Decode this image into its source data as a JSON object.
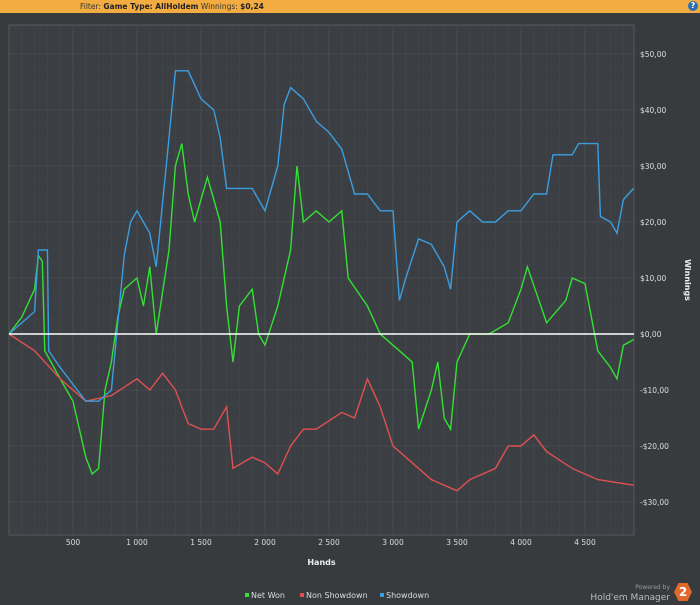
{
  "header": {
    "filter_label": "Filter:",
    "game_type": "Game Type: AllHoldem",
    "winnings_label": "Winnings:",
    "winnings_value": "$0,24",
    "help_icon": "question-icon"
  },
  "branding": {
    "powered_by": "Powered by",
    "product": "Hold'em Manager",
    "badge": "2"
  },
  "chart_data": {
    "type": "line",
    "xlabel": "Hands",
    "ylabel": "Winnings",
    "xlim": [
      0,
      4880
    ],
    "ylim": [
      -36,
      55
    ],
    "x_ticks": [
      500,
      1000,
      1500,
      2000,
      2500,
      3000,
      3500,
      4000,
      4500
    ],
    "x_tick_labels": [
      "500",
      "1 000",
      "1 500",
      "2 000",
      "2 500",
      "3 000",
      "3 500",
      "4 000",
      "4 500"
    ],
    "y_ticks": [
      50,
      40,
      30,
      20,
      10,
      0,
      -10,
      -20,
      -30
    ],
    "y_tick_labels": [
      "$50,00",
      "$40,00",
      "$30,00",
      "$20,00",
      "$10,00",
      "$0,00",
      "-$10,00",
      "-$20,00",
      "-$30,00"
    ],
    "grid": true,
    "legend_position": "bottom",
    "series": [
      {
        "name": "Net Won",
        "color": "#33e033",
        "points": [
          [
            0,
            0
          ],
          [
            100,
            3
          ],
          [
            200,
            8
          ],
          [
            230,
            14
          ],
          [
            260,
            13
          ],
          [
            280,
            -3
          ],
          [
            400,
            -8
          ],
          [
            500,
            -12
          ],
          [
            600,
            -22
          ],
          [
            650,
            -25
          ],
          [
            700,
            -24
          ],
          [
            750,
            -10
          ],
          [
            800,
            -5
          ],
          [
            850,
            3
          ],
          [
            900,
            8
          ],
          [
            1000,
            10
          ],
          [
            1050,
            5
          ],
          [
            1100,
            12
          ],
          [
            1150,
            0
          ],
          [
            1250,
            15
          ],
          [
            1300,
            30
          ],
          [
            1350,
            34
          ],
          [
            1400,
            25
          ],
          [
            1450,
            20
          ],
          [
            1550,
            28
          ],
          [
            1650,
            20
          ],
          [
            1700,
            5
          ],
          [
            1750,
            -5
          ],
          [
            1800,
            5
          ],
          [
            1900,
            8
          ],
          [
            1950,
            0
          ],
          [
            2000,
            -2
          ],
          [
            2100,
            5
          ],
          [
            2200,
            15
          ],
          [
            2250,
            30
          ],
          [
            2300,
            20
          ],
          [
            2400,
            22
          ],
          [
            2500,
            20
          ],
          [
            2600,
            22
          ],
          [
            2650,
            10
          ],
          [
            2800,
            5
          ],
          [
            2900,
            0
          ],
          [
            3000,
            -2
          ],
          [
            3150,
            -5
          ],
          [
            3200,
            -17
          ],
          [
            3300,
            -10
          ],
          [
            3350,
            -5
          ],
          [
            3400,
            -15
          ],
          [
            3450,
            -17
          ],
          [
            3500,
            -5
          ],
          [
            3600,
            0
          ],
          [
            3750,
            0
          ],
          [
            3900,
            2
          ],
          [
            4000,
            8
          ],
          [
            4050,
            12
          ],
          [
            4200,
            2
          ],
          [
            4350,
            6
          ],
          [
            4400,
            10
          ],
          [
            4500,
            9
          ],
          [
            4600,
            -3
          ],
          [
            4700,
            -6
          ],
          [
            4750,
            -8
          ],
          [
            4800,
            -2
          ],
          [
            4880,
            -1
          ]
        ]
      },
      {
        "name": "Non Showdown",
        "color": "#e05050",
        "points": [
          [
            0,
            0
          ],
          [
            200,
            -3
          ],
          [
            400,
            -8
          ],
          [
            600,
            -12
          ],
          [
            800,
            -11
          ],
          [
            1000,
            -8
          ],
          [
            1100,
            -10
          ],
          [
            1200,
            -7
          ],
          [
            1300,
            -10
          ],
          [
            1400,
            -16
          ],
          [
            1500,
            -17
          ],
          [
            1600,
            -17
          ],
          [
            1700,
            -13
          ],
          [
            1750,
            -24
          ],
          [
            1900,
            -22
          ],
          [
            2000,
            -23
          ],
          [
            2100,
            -25
          ],
          [
            2200,
            -20
          ],
          [
            2300,
            -17
          ],
          [
            2400,
            -17
          ],
          [
            2600,
            -14
          ],
          [
            2700,
            -15
          ],
          [
            2800,
            -8
          ],
          [
            2900,
            -13
          ],
          [
            3000,
            -20
          ],
          [
            3100,
            -22
          ],
          [
            3300,
            -26
          ],
          [
            3500,
            -28
          ],
          [
            3600,
            -26
          ],
          [
            3800,
            -24
          ],
          [
            3900,
            -20
          ],
          [
            4000,
            -20
          ],
          [
            4100,
            -18
          ],
          [
            4200,
            -21
          ],
          [
            4400,
            -24
          ],
          [
            4600,
            -26
          ],
          [
            4880,
            -27
          ]
        ]
      },
      {
        "name": "Showdown",
        "color": "#3a9ee0",
        "points": [
          [
            0,
            0
          ],
          [
            200,
            4
          ],
          [
            230,
            15
          ],
          [
            300,
            15
          ],
          [
            310,
            -3
          ],
          [
            400,
            -6
          ],
          [
            600,
            -12
          ],
          [
            700,
            -12
          ],
          [
            800,
            -10
          ],
          [
            900,
            14
          ],
          [
            950,
            20
          ],
          [
            1000,
            22
          ],
          [
            1050,
            20
          ],
          [
            1100,
            18
          ],
          [
            1150,
            12
          ],
          [
            1250,
            35
          ],
          [
            1300,
            47
          ],
          [
            1400,
            47
          ],
          [
            1500,
            42
          ],
          [
            1600,
            40
          ],
          [
            1650,
            35
          ],
          [
            1700,
            26
          ],
          [
            1900,
            26
          ],
          [
            2000,
            22
          ],
          [
            2100,
            30
          ],
          [
            2150,
            41
          ],
          [
            2200,
            44
          ],
          [
            2300,
            42
          ],
          [
            2400,
            38
          ],
          [
            2500,
            36
          ],
          [
            2600,
            33
          ],
          [
            2700,
            25
          ],
          [
            2800,
            25
          ],
          [
            2900,
            22
          ],
          [
            3000,
            22
          ],
          [
            3050,
            6
          ],
          [
            3100,
            10
          ],
          [
            3200,
            17
          ],
          [
            3300,
            16
          ],
          [
            3400,
            12
          ],
          [
            3450,
            8
          ],
          [
            3500,
            20
          ],
          [
            3600,
            22
          ],
          [
            3700,
            20
          ],
          [
            3800,
            20
          ],
          [
            3900,
            22
          ],
          [
            4000,
            22
          ],
          [
            4100,
            25
          ],
          [
            4200,
            25
          ],
          [
            4250,
            32
          ],
          [
            4400,
            32
          ],
          [
            4450,
            34
          ],
          [
            4600,
            34
          ],
          [
            4620,
            21
          ],
          [
            4700,
            20
          ],
          [
            4750,
            18
          ],
          [
            4800,
            24
          ],
          [
            4880,
            26
          ]
        ]
      }
    ]
  }
}
